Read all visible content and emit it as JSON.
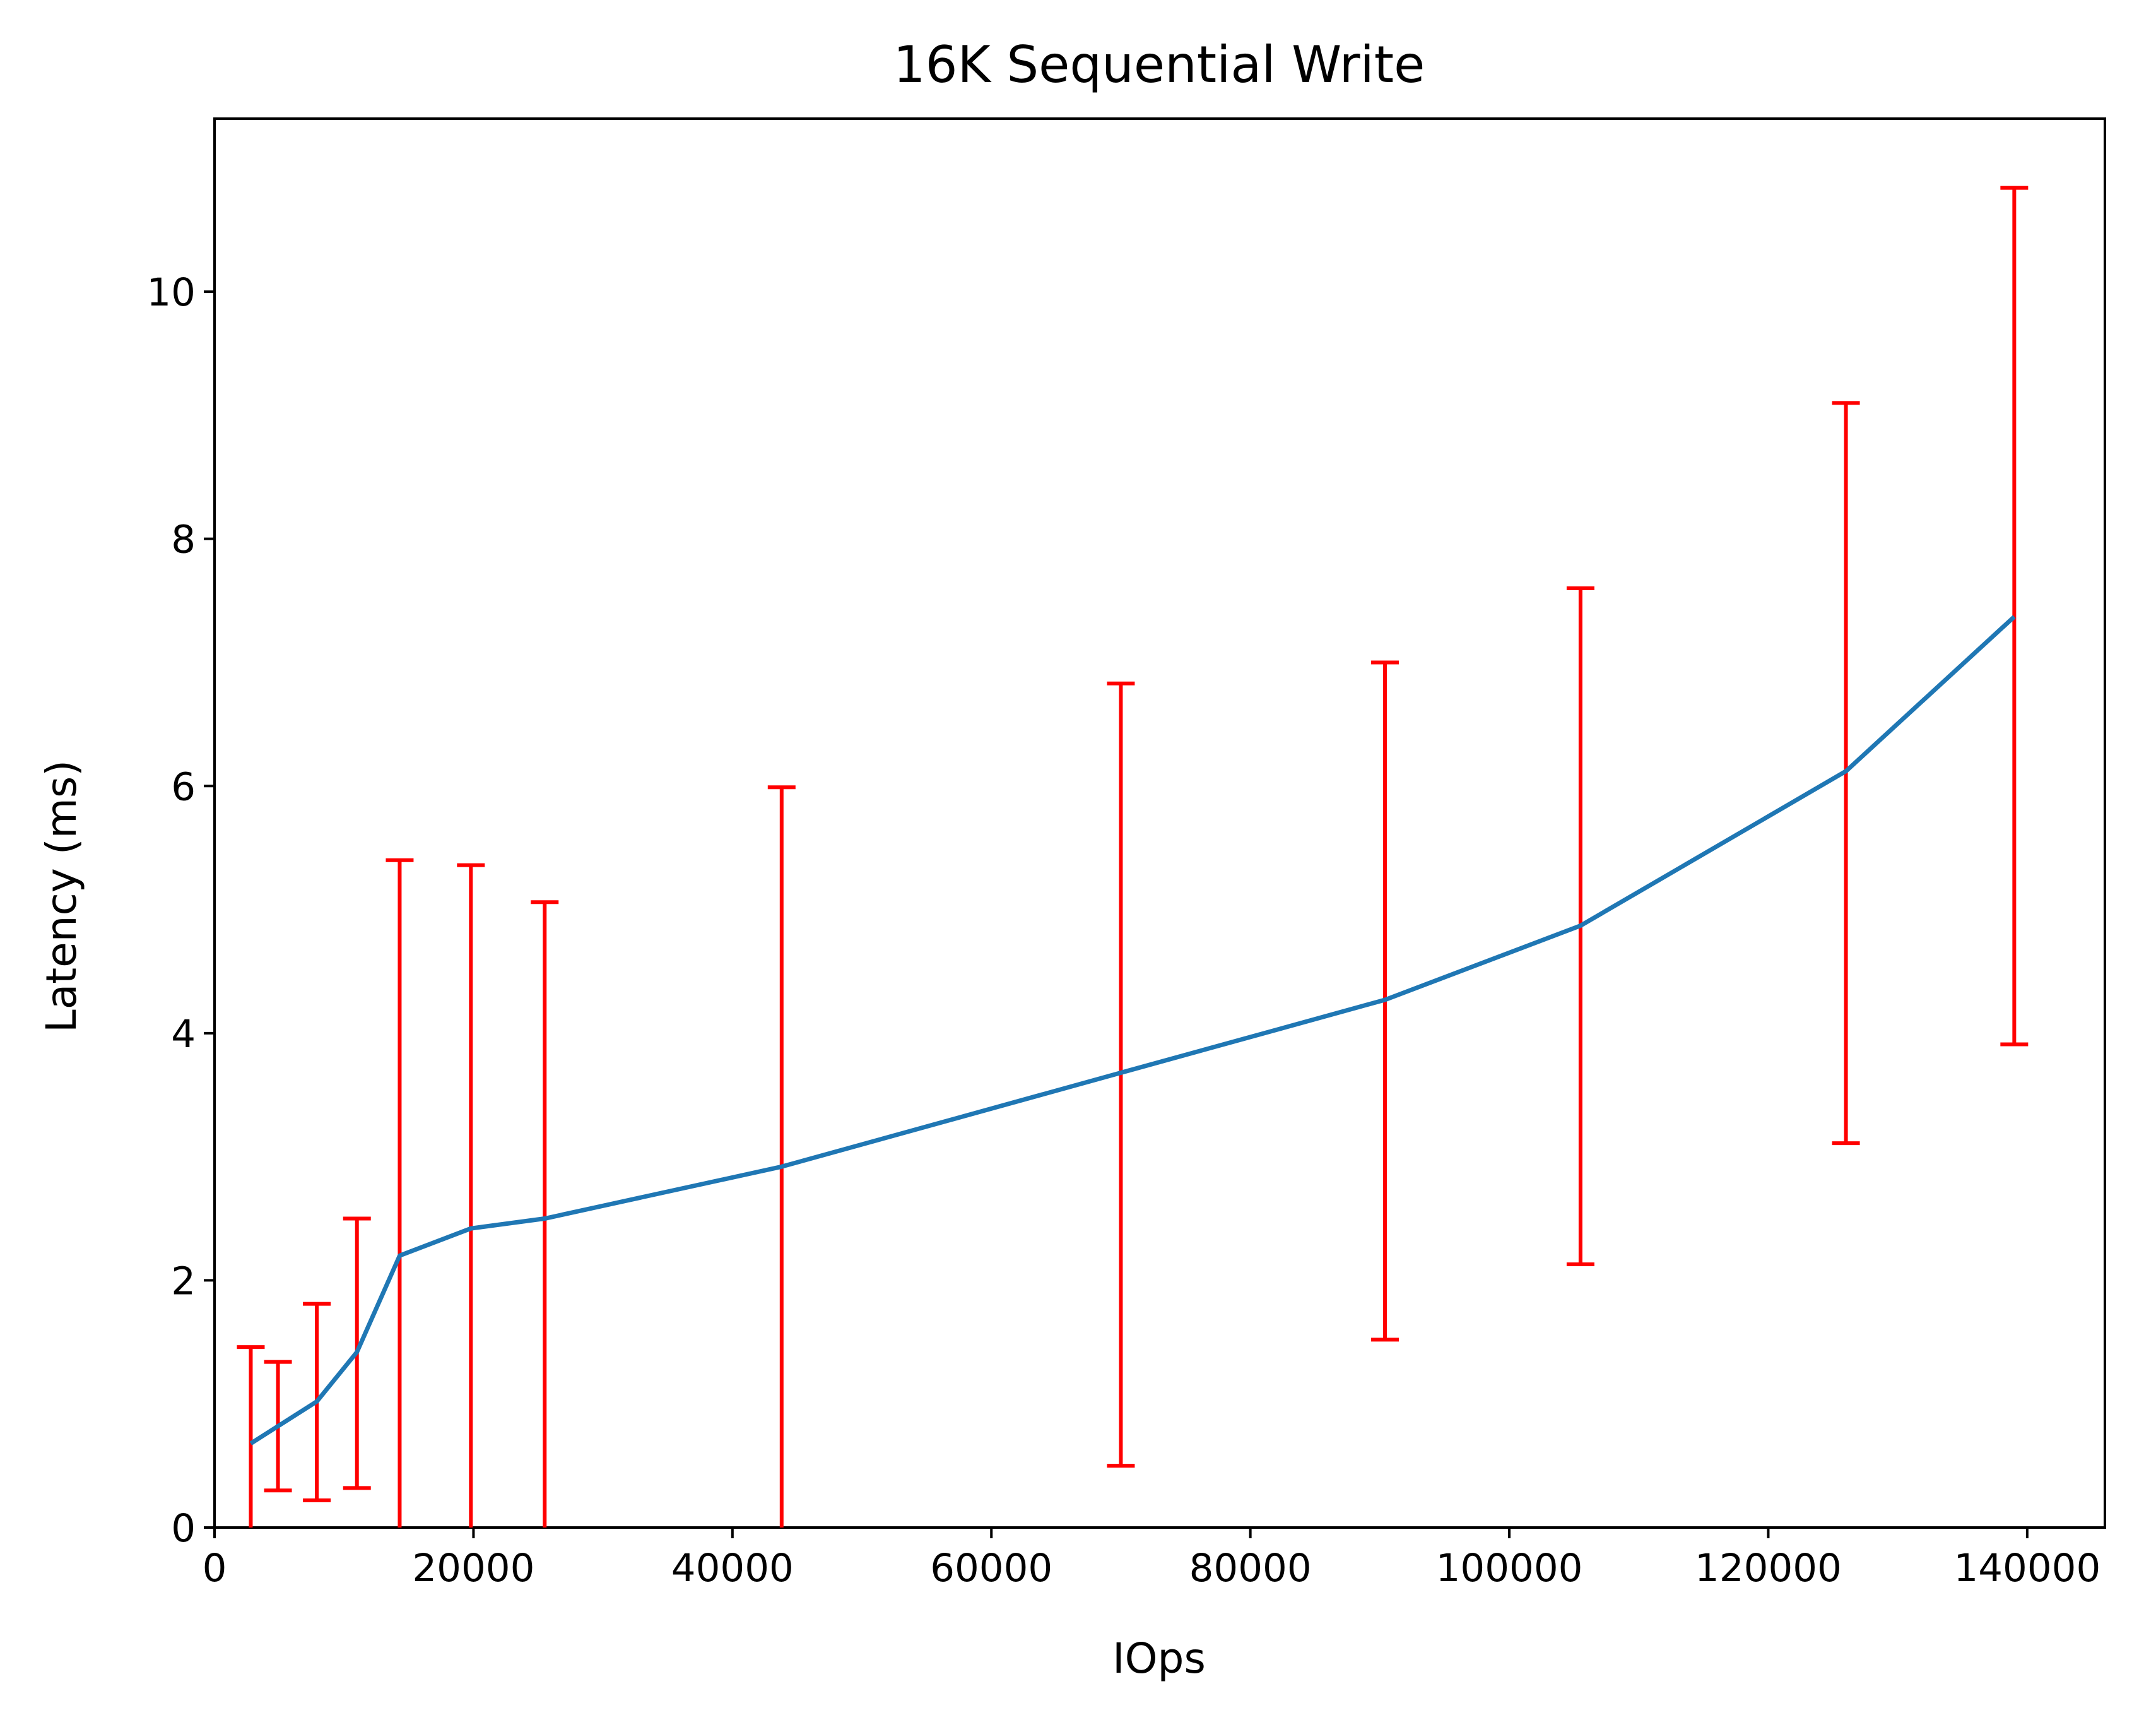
{
  "chart_data": {
    "type": "line",
    "title": "16K  Sequential Write",
    "xlabel": "IOps",
    "ylabel": "Latency (ms)",
    "xlim": [
      0,
      146000
    ],
    "ylim": [
      0,
      11.4
    ],
    "x_ticks": [
      0,
      20000,
      40000,
      60000,
      80000,
      100000,
      120000,
      140000
    ],
    "x_tick_labels": [
      "0",
      "20000",
      "40000",
      "60000",
      "80000",
      "100000",
      "120000",
      "140000"
    ],
    "y_ticks": [
      0,
      2,
      4,
      6,
      8,
      10
    ],
    "y_tick_labels": [
      "0",
      "2",
      "4",
      "6",
      "8",
      "10"
    ],
    "grid": false,
    "series": [
      {
        "color": "#1f77b4",
        "error_color": "#ff0000",
        "x": [
          2800,
          4900,
          7900,
          11000,
          14300,
          19800,
          25500,
          43800,
          70000,
          90400,
          105500,
          126000,
          139000
        ],
        "y": [
          0.68,
          0.82,
          1.02,
          1.42,
          2.2,
          2.42,
          2.5,
          2.92,
          3.68,
          4.27,
          4.87,
          6.12,
          7.37
        ],
        "y_low": [
          0,
          0.3,
          0.22,
          0.32,
          0,
          0,
          0,
          0,
          0.5,
          1.52,
          2.13,
          3.11,
          3.91
        ],
        "y_high": [
          1.46,
          1.34,
          1.81,
          2.5,
          5.4,
          5.36,
          5.06,
          5.99,
          6.83,
          7.0,
          7.6,
          9.1,
          10.84
        ]
      }
    ]
  }
}
